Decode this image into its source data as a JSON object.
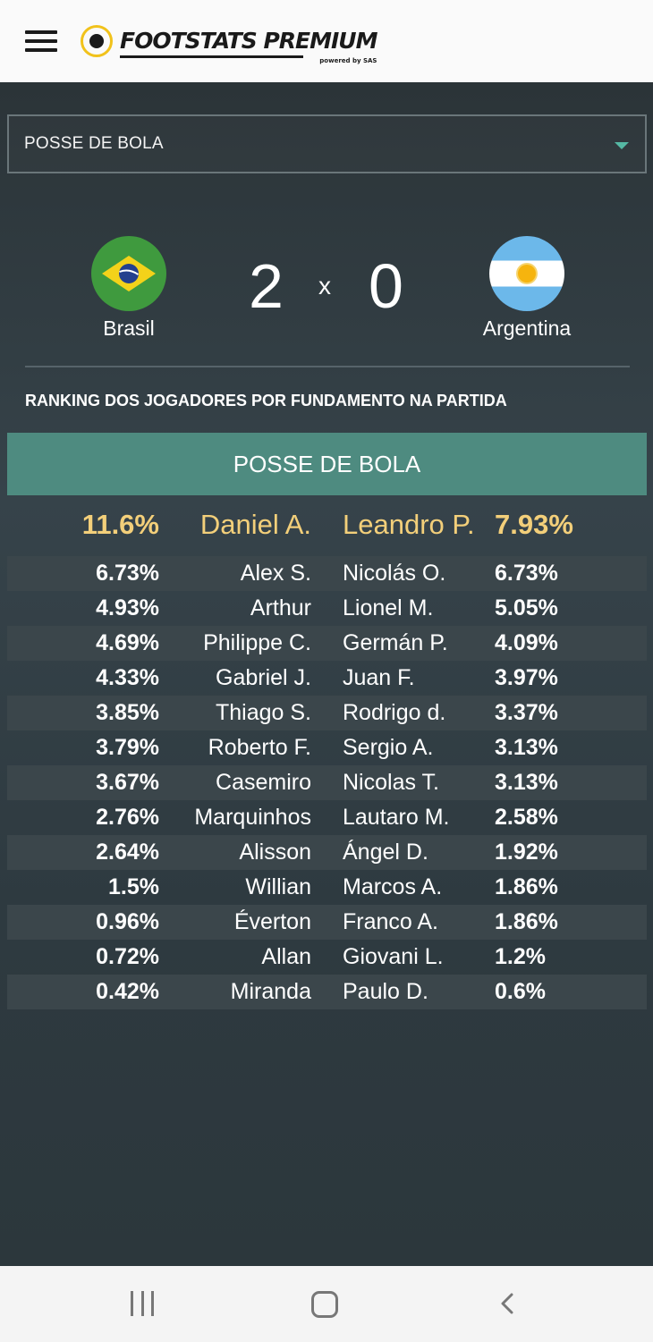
{
  "app": {
    "logo_text": "FOOTSTATS PREMIUM",
    "logo_sub": "powered by SAS"
  },
  "dropdown": {
    "selected": "POSSE DE BOLA"
  },
  "match": {
    "home_team": "Brasil",
    "away_team": "Argentina",
    "home_score": "2",
    "away_score": "0",
    "separator": "x"
  },
  "ranking": {
    "title": "RANKING DOS JOGADORES POR FUNDAMENTO NA PARTIDA",
    "header": "POSSE DE BOLA",
    "rows": [
      {
        "home_value": "11.6%",
        "home_player": "Daniel A.",
        "away_player": "Leandro P.",
        "away_value": "7.93%"
      },
      {
        "home_value": "6.73%",
        "home_player": "Alex S.",
        "away_player": "Nicolás O.",
        "away_value": "6.73%"
      },
      {
        "home_value": "4.93%",
        "home_player": "Arthur",
        "away_player": "Lionel M.",
        "away_value": "5.05%"
      },
      {
        "home_value": "4.69%",
        "home_player": "Philippe C.",
        "away_player": "Germán P.",
        "away_value": "4.09%"
      },
      {
        "home_value": "4.33%",
        "home_player": "Gabriel J.",
        "away_player": "Juan F.",
        "away_value": "3.97%"
      },
      {
        "home_value": "3.85%",
        "home_player": "Thiago S.",
        "away_player": "Rodrigo d.",
        "away_value": "3.37%"
      },
      {
        "home_value": "3.79%",
        "home_player": "Roberto F.",
        "away_player": "Sergio A.",
        "away_value": "3.13%"
      },
      {
        "home_value": "3.67%",
        "home_player": "Casemiro",
        "away_player": "Nicolas T.",
        "away_value": "3.13%"
      },
      {
        "home_value": "2.76%",
        "home_player": "Marquinhos",
        "away_player": "Lautaro M.",
        "away_value": "2.58%"
      },
      {
        "home_value": "2.64%",
        "home_player": "Alisson",
        "away_player": "Ángel D.",
        "away_value": "1.92%"
      },
      {
        "home_value": "1.5%",
        "home_player": "Willian",
        "away_player": "Marcos A.",
        "away_value": "1.86%"
      },
      {
        "home_value": "0.96%",
        "home_player": "Éverton",
        "away_player": "Franco A.",
        "away_value": "1.86%"
      },
      {
        "home_value": "0.72%",
        "home_player": "Allan",
        "away_player": "Giovani L.",
        "away_value": "1.2%"
      },
      {
        "home_value": "0.42%",
        "home_player": "Miranda",
        "away_player": "Paulo D.",
        "away_value": "0.6%"
      }
    ]
  },
  "colors": {
    "accent": "#4e8b80",
    "highlight": "#f3cf7a",
    "caret": "#55b8a4"
  },
  "icons": {
    "menu": "hamburger-menu-icon",
    "dropdown": "chevron-down-icon",
    "nav_recents": "recent-apps-icon",
    "nav_home": "home-icon",
    "nav_back": "back-icon"
  }
}
